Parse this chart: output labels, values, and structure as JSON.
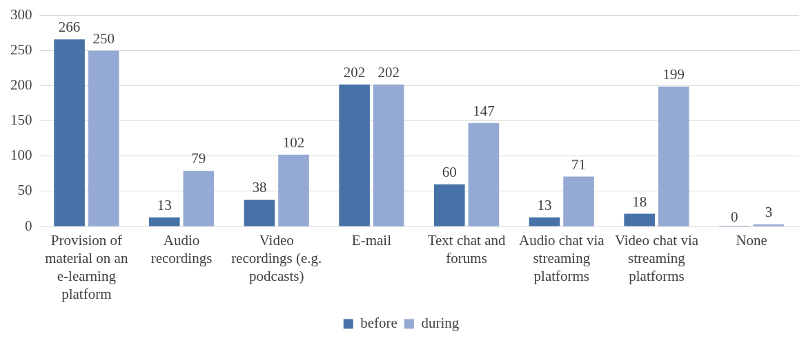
{
  "chart_data": {
    "type": "bar",
    "categories": [
      "Provision of material on an e-learning platform",
      "Audio recordings",
      "Video recordings (e.g. podcasts)",
      "E-mail",
      "Text chat and forums",
      "Audio chat via streaming platforms",
      "Video chat via streaming platforms",
      "None"
    ],
    "series": [
      {
        "name": "before",
        "color": "#4672a8",
        "values": [
          266,
          13,
          38,
          202,
          60,
          13,
          18,
          0
        ]
      },
      {
        "name": "during",
        "color": "#94a9d3",
        "values": [
          250,
          79,
          102,
          202,
          147,
          71,
          199,
          3
        ]
      }
    ],
    "ylim": [
      0,
      300
    ],
    "yticks": [
      0,
      50,
      100,
      150,
      200,
      250,
      300
    ],
    "grid": "y",
    "legend": "bottom",
    "data_labels": true
  }
}
